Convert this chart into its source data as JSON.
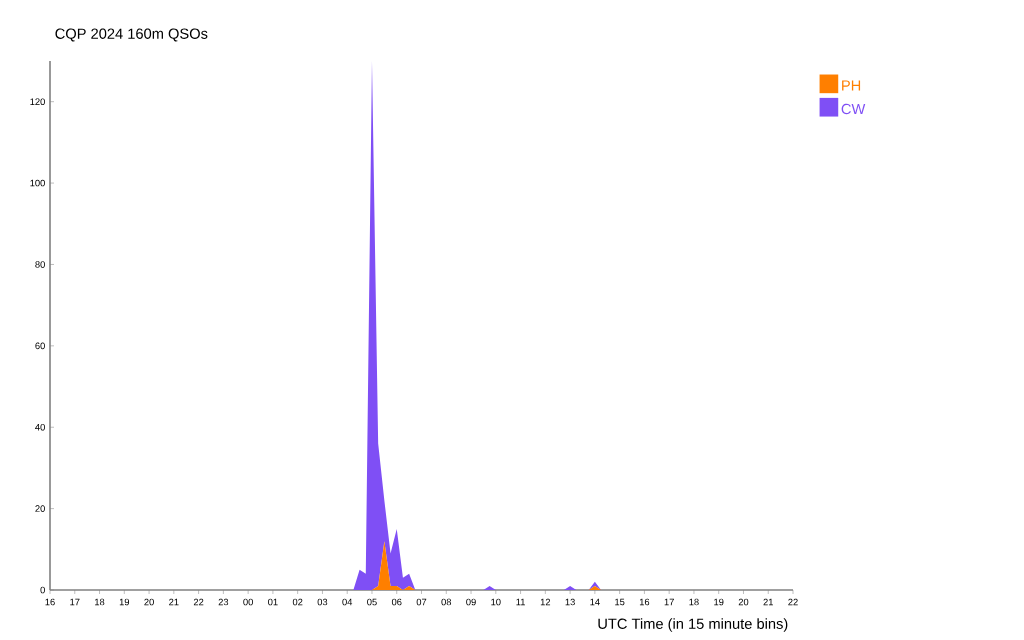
{
  "chart_data": {
    "type": "area",
    "stacked": true,
    "title": "CQP 2024 160m QSOs",
    "xlabel": "UTC Time (in 15 minute bins)",
    "x": [
      "2024-10-05T16:00",
      "2024-10-06T04:00",
      "2024-10-06T04:15",
      "2024-10-06T04:30",
      "2024-10-06T04:45",
      "2024-10-06T05:00",
      "2024-10-06T05:15",
      "2024-10-06T05:30",
      "2024-10-06T05:45",
      "2024-10-06T06:00",
      "2024-10-06T06:15",
      "2024-10-06T06:30",
      "2024-10-06T06:45",
      "2024-10-06T09:30",
      "2024-10-06T09:45",
      "2024-10-06T10:00",
      "2024-10-06T12:45",
      "2024-10-06T13:00",
      "2024-10-06T13:15",
      "2024-10-06T13:45",
      "2024-10-06T14:00",
      "2024-10-06T14:15",
      "2024-10-06T22:00"
    ],
    "series": [
      {
        "name": "PH",
        "color": "#ff7f00",
        "values": [
          0,
          0,
          0,
          0,
          0,
          0,
          1,
          12,
          1,
          1,
          0,
          1,
          0,
          0,
          0,
          0,
          0,
          0,
          0,
          0,
          1,
          0,
          0
        ]
      },
      {
        "name": "CW",
        "color": "#7f4ff5",
        "values": [
          0,
          0,
          0,
          5,
          4,
          130,
          35,
          10,
          8,
          14,
          3,
          3,
          0,
          0,
          1,
          0,
          0,
          1,
          0,
          0,
          1,
          0,
          0
        ]
      }
    ],
    "xlim": [
      "2024-10-05T16:00",
      "2024-10-06T22:00"
    ],
    "ylim": [
      0,
      130
    ],
    "yticks": [
      0,
      20,
      40,
      60,
      80,
      100,
      120
    ],
    "xticks": [
      {
        "value": "2024-10-05T16:00",
        "label": "16"
      },
      {
        "value": "2024-10-05T17:00",
        "label": "17"
      },
      {
        "value": "2024-10-05T18:00",
        "label": "18"
      },
      {
        "value": "2024-10-05T19:00",
        "label": "19"
      },
      {
        "value": "2024-10-05T20:00",
        "label": "20"
      },
      {
        "value": "2024-10-05T21:00",
        "label": "21"
      },
      {
        "value": "2024-10-05T22:00",
        "label": "22"
      },
      {
        "value": "2024-10-05T23:00",
        "label": "23"
      },
      {
        "value": "2024-10-06T00:00",
        "label": "00"
      },
      {
        "value": "2024-10-06T01:00",
        "label": "01"
      },
      {
        "value": "2024-10-06T02:00",
        "label": "02"
      },
      {
        "value": "2024-10-06T03:00",
        "label": "03"
      },
      {
        "value": "2024-10-06T04:00",
        "label": "04"
      },
      {
        "value": "2024-10-06T05:00",
        "label": "05"
      },
      {
        "value": "2024-10-06T06:00",
        "label": "06"
      },
      {
        "value": "2024-10-06T07:00",
        "label": "07"
      },
      {
        "value": "2024-10-06T08:00",
        "label": "08"
      },
      {
        "value": "2024-10-06T09:00",
        "label": "09"
      },
      {
        "value": "2024-10-06T10:00",
        "label": "10"
      },
      {
        "value": "2024-10-06T11:00",
        "label": "11"
      },
      {
        "value": "2024-10-06T12:00",
        "label": "12"
      },
      {
        "value": "2024-10-06T13:00",
        "label": "13"
      },
      {
        "value": "2024-10-06T14:00",
        "label": "14"
      },
      {
        "value": "2024-10-06T15:00",
        "label": "15"
      },
      {
        "value": "2024-10-06T16:00",
        "label": "16"
      },
      {
        "value": "2024-10-06T17:00",
        "label": "17"
      },
      {
        "value": "2024-10-06T18:00",
        "label": "18"
      },
      {
        "value": "2024-10-06T19:00",
        "label": "19"
      },
      {
        "value": "2024-10-06T20:00",
        "label": "20"
      },
      {
        "value": "2024-10-06T21:00",
        "label": "21"
      },
      {
        "value": "2024-10-06T22:00",
        "label": "22"
      }
    ],
    "legend": "top right"
  }
}
